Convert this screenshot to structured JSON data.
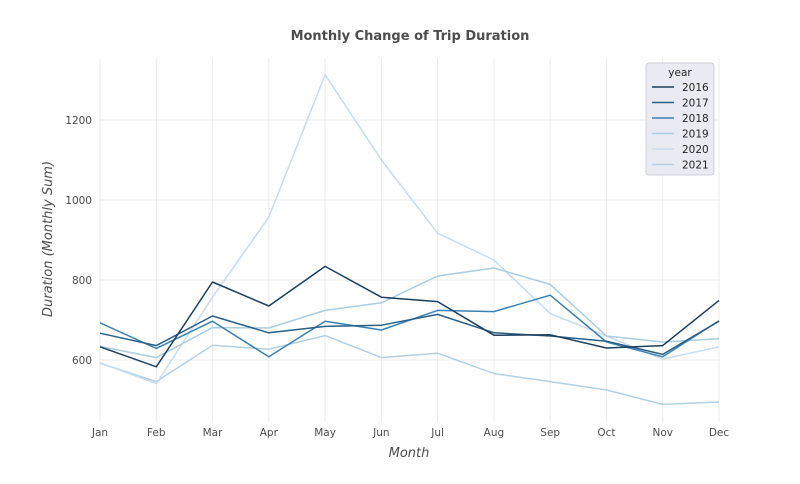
{
  "chart_data": {
    "type": "line",
    "title": "Monthly Change of Trip Duration",
    "xlabel": "Month",
    "ylabel": "Duration (Monthly Sum)",
    "categories": [
      "Jan",
      "Feb",
      "Mar",
      "Apr",
      "May",
      "Jun",
      "Jul",
      "Aug",
      "Sep",
      "Oct",
      "Nov",
      "Dec"
    ],
    "ylim": [
      445,
      1355
    ],
    "yticks": [
      600,
      800,
      1000,
      1200
    ],
    "grid": true,
    "legend": {
      "title": "year",
      "placement": "top-right"
    },
    "series": [
      {
        "name": "2016",
        "color": "#1b3f5e",
        "values": [
          633,
          583,
          795,
          735,
          834,
          757,
          746,
          662,
          663,
          630,
          636,
          749
        ]
      },
      {
        "name": "2017",
        "color": "#2a5f86",
        "values": [
          667,
          636,
          710,
          668,
          684,
          687,
          714,
          668,
          660,
          647,
          614,
          697
        ]
      },
      {
        "name": "2018",
        "color": "#3a82b4",
        "values": [
          693,
          629,
          697,
          608,
          697,
          675,
          724,
          721,
          762,
          645,
          608,
          698
        ]
      },
      {
        "name": "2019",
        "color": "#a9cde2",
        "values": [
          634,
          606,
          681,
          680,
          724,
          743,
          810,
          830,
          789,
          660,
          645,
          653
        ]
      },
      {
        "name": "2020",
        "color": "#c7dcec",
        "values": [
          593,
          541,
          757,
          957,
          1313,
          1100,
          917,
          850,
          716,
          660,
          602,
          633
        ]
      },
      {
        "name": "2021",
        "color": "#b2d0e4",
        "values": [
          592,
          546,
          637,
          627,
          661,
          606,
          617,
          566,
          546,
          525,
          489,
          495
        ]
      }
    ]
  }
}
